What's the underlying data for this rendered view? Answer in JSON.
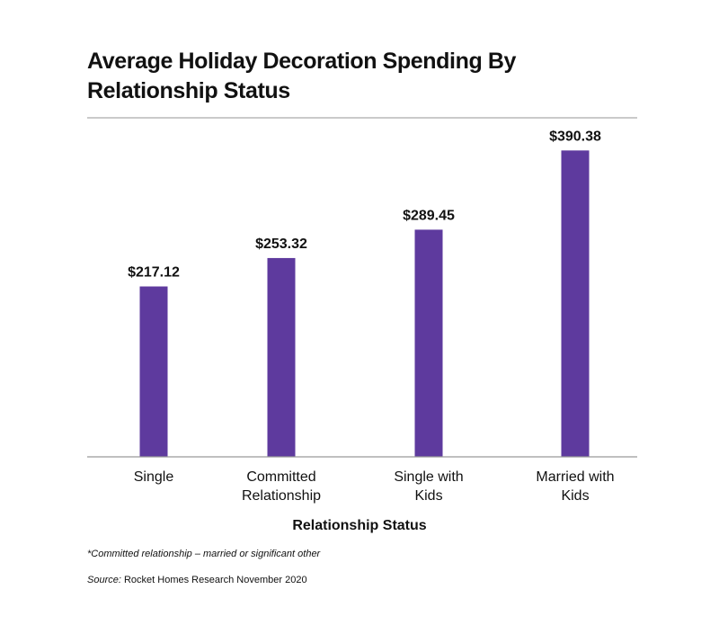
{
  "chart_data": {
    "type": "bar",
    "title": "Average Holiday Decoration Spending By Relationship Status",
    "xlabel": "Relationship Status",
    "ylabel": "",
    "categories": [
      [
        "Single"
      ],
      [
        "Committed",
        "Relationship"
      ],
      [
        "Single with",
        "Kids"
      ],
      [
        "Married with",
        "Kids"
      ]
    ],
    "values": [
      217.12,
      253.32,
      289.45,
      390.38
    ],
    "data_labels": [
      "$217.12",
      "$253.32",
      "$289.45",
      "$390.38"
    ],
    "ylim": [
      0,
      432
    ],
    "bar_color": "#5e3a9e",
    "grid": false,
    "legend": "none"
  },
  "footnote": "*Committed relationship – married or significant other",
  "source": {
    "label": "Source:",
    "text": " Rocket Homes Research November 2020"
  }
}
